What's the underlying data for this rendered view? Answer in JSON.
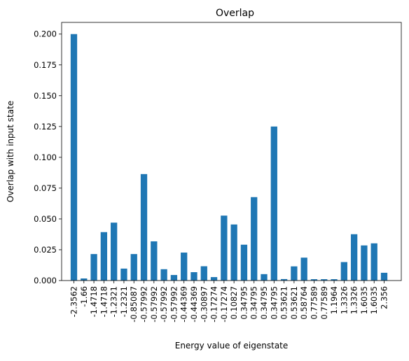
{
  "chart_data": {
    "type": "bar",
    "title": "Overlap",
    "xlabel": "Energy value of eigenstate",
    "ylabel": "Overlap with input state",
    "ylim": [
      0.0,
      0.2095
    ],
    "yticks": [
      "0.000",
      "0.025",
      "0.050",
      "0.075",
      "0.100",
      "0.125",
      "0.150",
      "0.175",
      "0.200"
    ],
    "ytick_values": [
      0.0,
      0.025,
      0.05,
      0.075,
      0.1,
      0.125,
      0.15,
      0.175,
      0.2
    ],
    "grid": false,
    "bar_color": "#1f77b4",
    "categories": [
      "-2.3562",
      "-1.66",
      "-1.4718",
      "-1.4718",
      "-1.2321",
      "-1.2321",
      "-0.85087",
      "-0.57992",
      "-0.57992",
      "-0.57992",
      "-0.57992",
      "-0.44369",
      "-0.44369",
      "-0.30897",
      "-0.17274",
      "-0.17274",
      "0.10827",
      "0.34795",
      "0.34795",
      "0.34795",
      "0.34795",
      "0.53621",
      "0.53621",
      "0.58764",
      "0.77589",
      "0.77589",
      "1.1964",
      "1.3326",
      "1.3326",
      "1.6035",
      "1.6035",
      "2.356"
    ],
    "values": [
      0.2,
      0.0017,
      0.0215,
      0.0393,
      0.047,
      0.0097,
      0.0215,
      0.0864,
      0.0318,
      0.0092,
      0.0045,
      0.0227,
      0.0068,
      0.0116,
      0.0028,
      0.0527,
      0.0455,
      0.0291,
      0.0677,
      0.0052,
      0.125,
      0.0012,
      0.0115,
      0.0186,
      0.0011,
      0.0011,
      0.0011,
      0.015,
      0.0376,
      0.0285,
      0.0302,
      0.0063
    ]
  }
}
